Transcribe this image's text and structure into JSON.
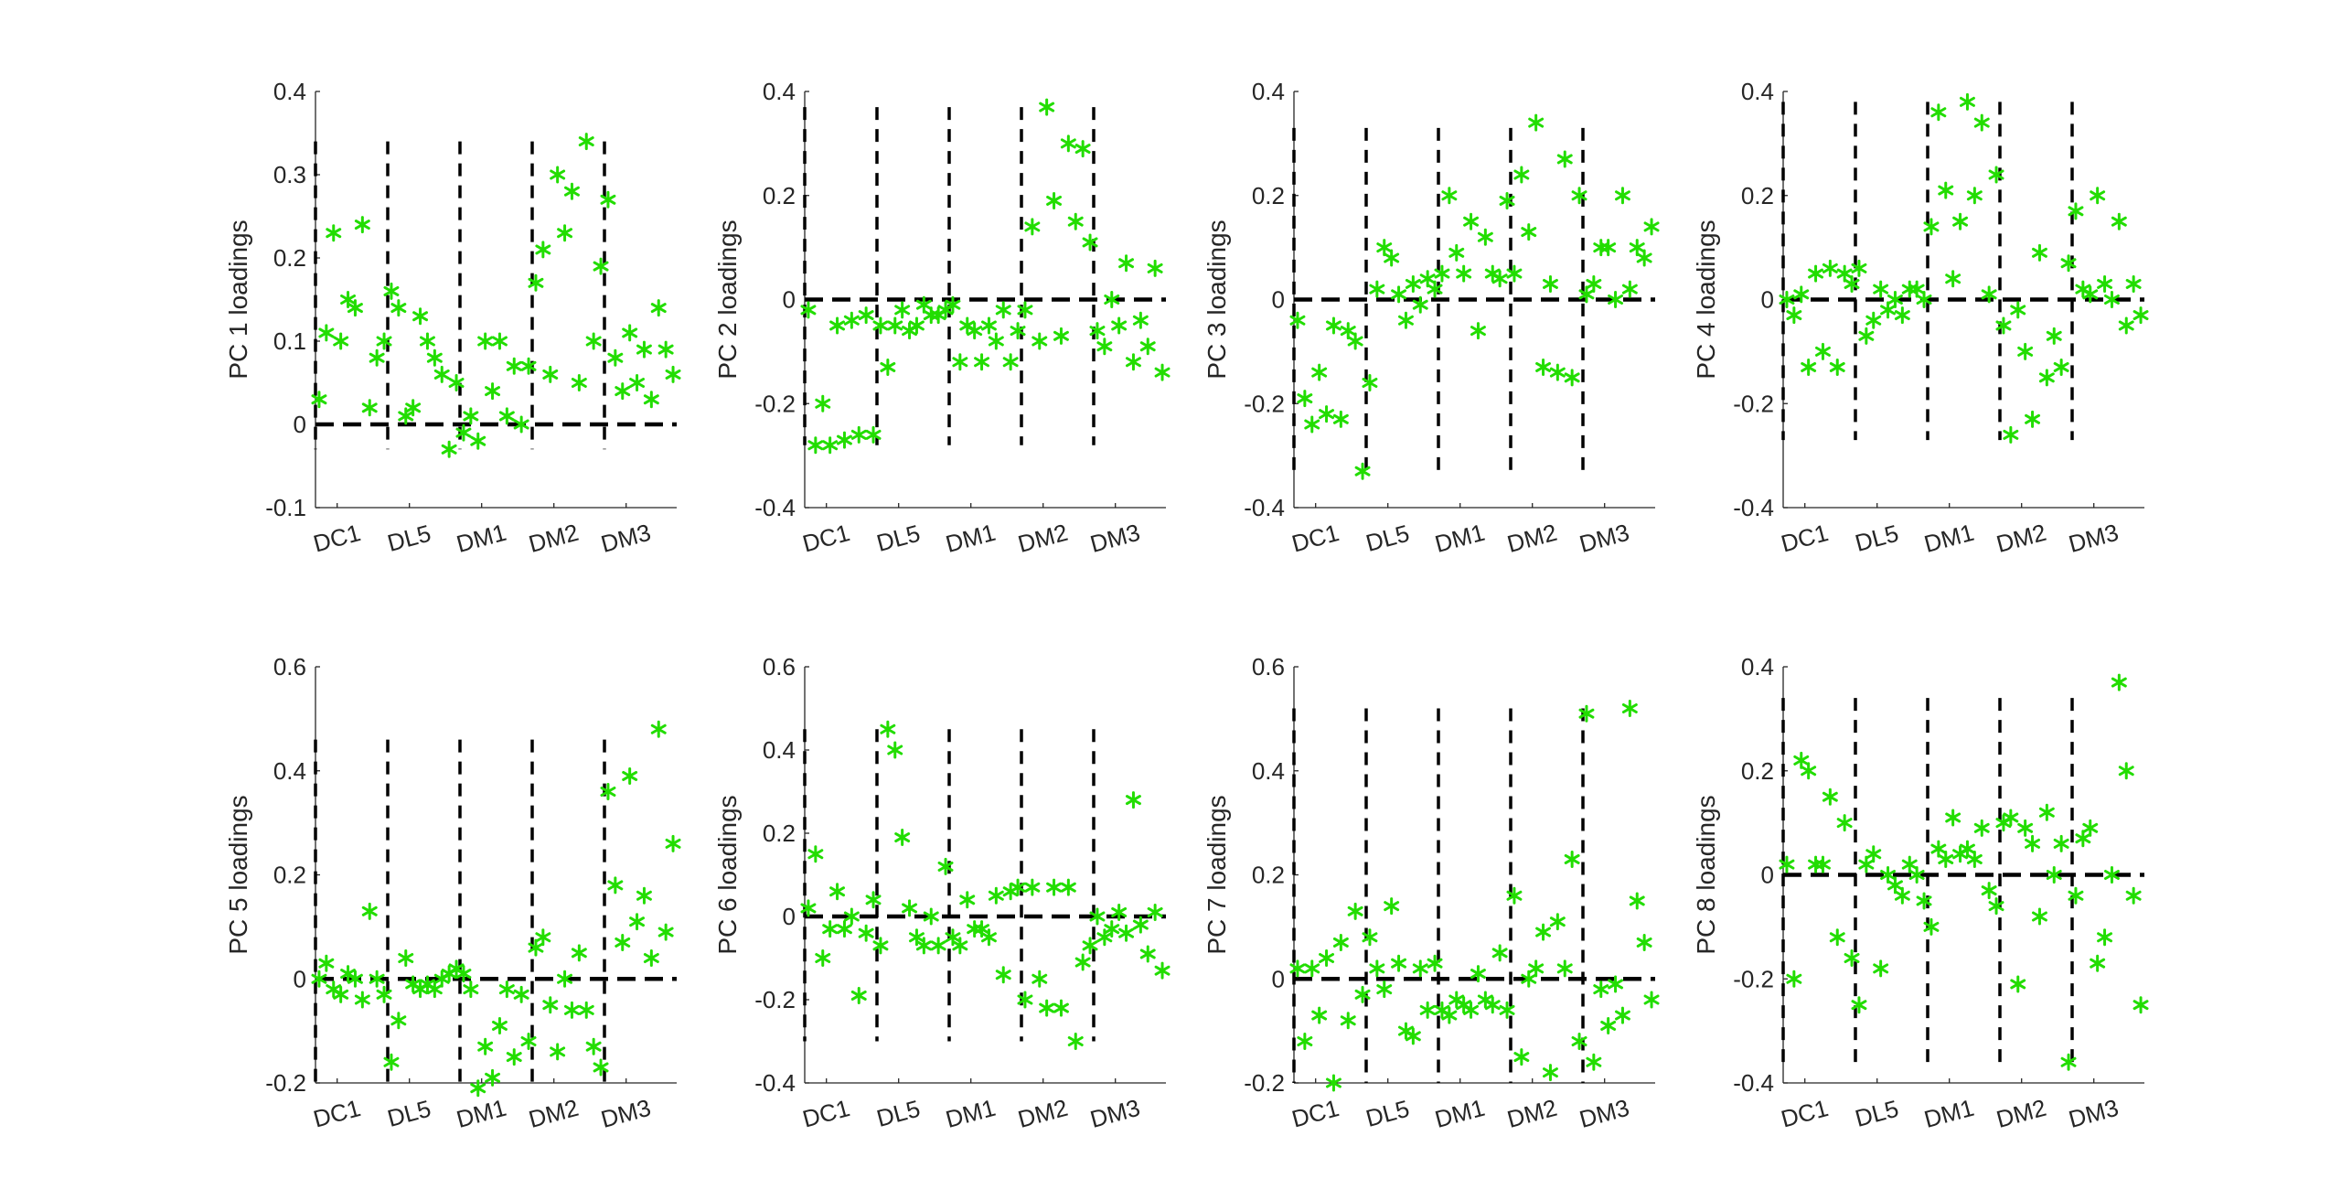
{
  "figure": {
    "marker_color": "#22dd00",
    "line_color": "#000000",
    "text_color": "#262626",
    "marker_symbol": "*",
    "zero_line_style": "dashed",
    "group_divider_style": "dashed"
  },
  "chart_data": [
    {
      "type": "scatter",
      "ylabel": "PC 1 loadings",
      "ylim": [
        -0.1,
        0.4
      ],
      "yticks": [
        -0.1,
        0,
        0.1,
        0.2,
        0.3,
        0.4
      ],
      "ytick_labels": [
        "-0.1",
        "0",
        "0.1",
        "0.2",
        "0.3",
        "0.4"
      ],
      "xlim": [
        0,
        50
      ],
      "xtick_positions": [
        3,
        13,
        23,
        33,
        43
      ],
      "xtick_labels": [
        "DC1",
        "DL5",
        "DM1",
        "DM2",
        "DM3"
      ],
      "group_boundaries": [
        0,
        10,
        20,
        30,
        40
      ],
      "divider_range": [
        -0.03,
        0.34
      ],
      "zero_line": 0,
      "y": [
        0.03,
        0.11,
        0.23,
        0.1,
        0.15,
        0.14,
        0.24,
        0.02,
        0.08,
        0.1,
        0.16,
        0.14,
        0.01,
        0.02,
        0.13,
        0.1,
        0.08,
        0.06,
        -0.03,
        0.05,
        -0.01,
        0.01,
        -0.02,
        0.1,
        0.04,
        0.1,
        0.01,
        0.07,
        0.0,
        0.07,
        0.17,
        0.21,
        0.06,
        0.3,
        0.23,
        0.28,
        0.05,
        0.34,
        0.1,
        0.19,
        0.27,
        0.08,
        0.04,
        0.11,
        0.05,
        0.09,
        0.03,
        0.14,
        0.09,
        0.06
      ]
    },
    {
      "type": "scatter",
      "ylabel": "PC 2 loadings",
      "ylim": [
        -0.4,
        0.4
      ],
      "yticks": [
        -0.4,
        -0.2,
        0,
        0.2,
        0.4
      ],
      "ytick_labels": [
        "-0.4",
        "-0.2",
        "0",
        "0.2",
        "0.4"
      ],
      "xlim": [
        0,
        50
      ],
      "xtick_positions": [
        3,
        13,
        23,
        33,
        43
      ],
      "xtick_labels": [
        "DC1",
        "DL5",
        "DM1",
        "DM2",
        "DM3"
      ],
      "group_boundaries": [
        0,
        10,
        20,
        30,
        40
      ],
      "divider_range": [
        -0.28,
        0.37
      ],
      "zero_line": 0,
      "y": [
        -0.02,
        -0.28,
        -0.2,
        -0.28,
        -0.05,
        -0.27,
        -0.04,
        -0.26,
        -0.03,
        -0.26,
        -0.05,
        -0.13,
        -0.05,
        -0.02,
        -0.06,
        -0.05,
        -0.01,
        -0.03,
        -0.03,
        -0.02,
        -0.01,
        -0.12,
        -0.05,
        -0.06,
        -0.12,
        -0.05,
        -0.08,
        -0.02,
        -0.12,
        -0.06,
        -0.02,
        0.14,
        -0.08,
        0.37,
        0.19,
        -0.07,
        0.3,
        0.15,
        0.29,
        0.11,
        -0.06,
        -0.09,
        0.0,
        -0.05,
        0.07,
        -0.12,
        -0.04,
        -0.09,
        0.06,
        -0.14
      ]
    },
    {
      "type": "scatter",
      "ylabel": "PC 3 loadings",
      "ylim": [
        -0.4,
        0.4
      ],
      "yticks": [
        -0.4,
        -0.2,
        0,
        0.2,
        0.4
      ],
      "ytick_labels": [
        "-0.4",
        "-0.2",
        "0",
        "0.2",
        "0.4"
      ],
      "xlim": [
        0,
        50
      ],
      "xtick_positions": [
        3,
        13,
        23,
        33,
        43
      ],
      "xtick_labels": [
        "DC1",
        "DL5",
        "DM1",
        "DM2",
        "DM3"
      ],
      "group_boundaries": [
        0,
        10,
        20,
        30,
        40
      ],
      "divider_range": [
        -0.33,
        0.33
      ],
      "zero_line": 0,
      "y": [
        -0.04,
        -0.19,
        -0.24,
        -0.14,
        -0.22,
        -0.05,
        -0.23,
        -0.06,
        -0.08,
        -0.33,
        -0.16,
        0.02,
        0.1,
        0.08,
        0.01,
        -0.04,
        0.03,
        -0.01,
        0.04,
        0.02,
        0.05,
        0.2,
        0.09,
        0.05,
        0.15,
        -0.06,
        0.12,
        0.05,
        0.04,
        0.19,
        0.05,
        0.24,
        0.13,
        0.34,
        -0.13,
        0.03,
        -0.14,
        0.27,
        -0.15,
        0.2,
        0.01,
        0.03,
        0.1,
        0.1,
        0.0,
        0.2,
        0.02,
        0.1,
        0.08,
        0.14
      ]
    },
    {
      "type": "scatter",
      "ylabel": "PC 4 loadings",
      "ylim": [
        -0.4,
        0.4
      ],
      "yticks": [
        -0.4,
        -0.2,
        0,
        0.2,
        0.4
      ],
      "ytick_labels": [
        "-0.4",
        "-0.2",
        "0",
        "0.2",
        "0.4"
      ],
      "xlim": [
        0,
        50
      ],
      "xtick_positions": [
        3,
        13,
        23,
        33,
        43
      ],
      "xtick_labels": [
        "DC1",
        "DL5",
        "DM1",
        "DM2",
        "DM3"
      ],
      "group_boundaries": [
        0,
        10,
        20,
        30,
        40
      ],
      "divider_range": [
        -0.27,
        0.38
      ],
      "zero_line": 0,
      "y": [
        0.0,
        -0.03,
        0.01,
        -0.13,
        0.05,
        -0.1,
        0.06,
        -0.13,
        0.05,
        0.03,
        0.06,
        -0.07,
        -0.04,
        0.02,
        -0.02,
        0.0,
        -0.03,
        0.02,
        0.02,
        0.0,
        0.14,
        0.36,
        0.21,
        0.04,
        0.15,
        0.38,
        0.2,
        0.34,
        0.01,
        0.24,
        -0.05,
        -0.26,
        -0.02,
        -0.1,
        -0.23,
        0.09,
        -0.15,
        -0.07,
        -0.13,
        0.07,
        0.17,
        0.02,
        0.01,
        0.2,
        0.03,
        0.0,
        0.15,
        -0.05,
        0.03,
        -0.03
      ]
    },
    {
      "type": "scatter",
      "ylabel": "PC 5 loadings",
      "ylim": [
        -0.2,
        0.6
      ],
      "yticks": [
        -0.2,
        0,
        0.2,
        0.4,
        0.6
      ],
      "ytick_labels": [
        "-0.2",
        "0",
        "0.2",
        "0.4",
        "0.6"
      ],
      "xlim": [
        0,
        50
      ],
      "xtick_positions": [
        3,
        13,
        23,
        33,
        43
      ],
      "xtick_labels": [
        "DC1",
        "DL5",
        "DM1",
        "DM2",
        "DM3"
      ],
      "group_boundaries": [
        0,
        10,
        20,
        30,
        40
      ],
      "divider_range": [
        -0.21,
        0.46
      ],
      "zero_line": 0,
      "y": [
        0.0,
        0.03,
        -0.02,
        -0.03,
        0.01,
        0.0,
        -0.04,
        0.13,
        0.0,
        -0.03,
        -0.16,
        -0.08,
        0.04,
        -0.01,
        -0.02,
        -0.01,
        -0.02,
        0.0,
        0.01,
        0.02,
        0.01,
        -0.02,
        -0.21,
        -0.13,
        -0.19,
        -0.09,
        -0.02,
        -0.15,
        -0.03,
        -0.12,
        0.06,
        0.08,
        -0.05,
        -0.14,
        0.0,
        -0.06,
        0.05,
        -0.06,
        -0.13,
        -0.17,
        0.36,
        0.18,
        0.07,
        0.39,
        0.11,
        0.16,
        0.04,
        0.48,
        0.09,
        0.26
      ]
    },
    {
      "type": "scatter",
      "ylabel": "PC 6 loadings",
      "ylim": [
        -0.4,
        0.6
      ],
      "yticks": [
        -0.4,
        -0.2,
        0,
        0.2,
        0.4,
        0.6
      ],
      "ytick_labels": [
        "-0.4",
        "-0.2",
        "0",
        "0.2",
        "0.4",
        "0.6"
      ],
      "xlim": [
        0,
        50
      ],
      "xtick_positions": [
        3,
        13,
        23,
        33,
        43
      ],
      "xtick_labels": [
        "DC1",
        "DL5",
        "DM1",
        "DM2",
        "DM3"
      ],
      "group_boundaries": [
        0,
        10,
        20,
        30,
        40
      ],
      "divider_range": [
        -0.3,
        0.45
      ],
      "zero_line": 0,
      "y": [
        0.02,
        0.15,
        -0.1,
        -0.03,
        0.06,
        -0.03,
        0.0,
        -0.19,
        -0.04,
        0.04,
        -0.07,
        0.45,
        0.4,
        0.19,
        0.02,
        -0.05,
        -0.07,
        0.0,
        -0.07,
        0.12,
        -0.05,
        -0.07,
        0.04,
        -0.03,
        -0.03,
        -0.05,
        0.05,
        -0.14,
        0.06,
        0.07,
        -0.2,
        0.07,
        -0.15,
        -0.22,
        0.07,
        -0.22,
        0.07,
        -0.3,
        -0.11,
        -0.07,
        0.0,
        -0.05,
        -0.03,
        0.01,
        -0.04,
        0.28,
        -0.02,
        -0.09,
        0.01,
        -0.13
      ]
    },
    {
      "type": "scatter",
      "ylabel": "PC 7 loadings",
      "ylim": [
        -0.2,
        0.6
      ],
      "yticks": [
        -0.2,
        0,
        0.2,
        0.4,
        0.6
      ],
      "ytick_labels": [
        "-0.2",
        "0",
        "0.2",
        "0.4",
        "0.6"
      ],
      "xlim": [
        0,
        50
      ],
      "xtick_positions": [
        3,
        13,
        23,
        33,
        43
      ],
      "xtick_labels": [
        "DC1",
        "DL5",
        "DM1",
        "DM2",
        "DM3"
      ],
      "group_boundaries": [
        0,
        10,
        20,
        30,
        40
      ],
      "divider_range": [
        -0.2,
        0.52
      ],
      "zero_line": 0,
      "y": [
        0.02,
        -0.12,
        0.02,
        -0.07,
        0.04,
        -0.2,
        0.07,
        -0.08,
        0.13,
        -0.03,
        0.08,
        0.02,
        -0.02,
        0.14,
        0.03,
        -0.1,
        -0.11,
        0.02,
        -0.06,
        0.03,
        -0.06,
        -0.07,
        -0.04,
        -0.05,
        -0.06,
        0.01,
        -0.04,
        -0.05,
        0.05,
        -0.06,
        0.16,
        -0.15,
        0.0,
        0.02,
        0.09,
        -0.18,
        0.11,
        0.02,
        0.23,
        -0.12,
        0.51,
        -0.16,
        -0.02,
        -0.09,
        -0.01,
        -0.07,
        0.52,
        0.15,
        0.07,
        -0.04
      ]
    },
    {
      "type": "scatter",
      "ylabel": "PC 8 loadings",
      "ylim": [
        -0.4,
        0.4
      ],
      "yticks": [
        -0.4,
        -0.2,
        0,
        0.2,
        0.4
      ],
      "ytick_labels": [
        "-0.4",
        "-0.2",
        "0",
        "0.2",
        "0.4"
      ],
      "xlim": [
        0,
        50
      ],
      "xtick_positions": [
        3,
        13,
        23,
        33,
        43
      ],
      "xtick_labels": [
        "DC1",
        "DL5",
        "DM1",
        "DM2",
        "DM3"
      ],
      "group_boundaries": [
        0,
        10,
        20,
        30,
        40
      ],
      "divider_range": [
        -0.36,
        0.34
      ],
      "zero_line": 0,
      "y": [
        0.02,
        -0.2,
        0.22,
        0.2,
        0.02,
        0.02,
        0.15,
        -0.12,
        0.1,
        -0.16,
        -0.25,
        0.02,
        0.04,
        -0.18,
        0.0,
        -0.02,
        -0.04,
        0.02,
        0.0,
        -0.05,
        -0.1,
        0.05,
        0.03,
        0.11,
        0.04,
        0.05,
        0.03,
        0.09,
        -0.03,
        -0.06,
        0.1,
        0.11,
        -0.21,
        0.09,
        0.06,
        -0.08,
        0.12,
        0.0,
        0.06,
        -0.36,
        -0.04,
        0.07,
        0.09,
        -0.17,
        -0.12,
        0.0,
        0.37,
        0.2,
        -0.04,
        -0.25
      ]
    }
  ]
}
